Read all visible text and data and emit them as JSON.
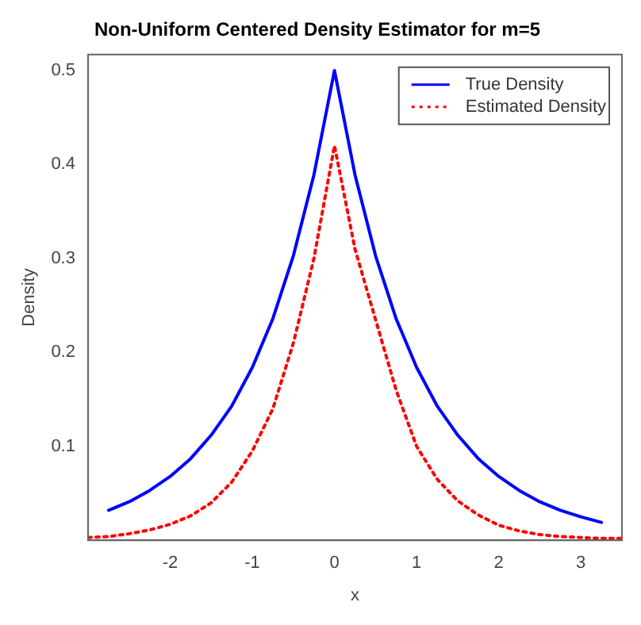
{
  "chart_data": {
    "type": "line",
    "title": "Non-Uniform Centered Density Estimator for m=5",
    "xlabel": "x",
    "ylabel": "Density",
    "xlim": [
      -3,
      3.5
    ],
    "ylim": [
      0,
      0.517
    ],
    "xticks": [
      -2,
      -1,
      0,
      1,
      2,
      3
    ],
    "yticks": [
      0.1,
      0.2,
      0.3,
      0.4,
      0.5
    ],
    "grid": false,
    "legend": "top right",
    "marker": "none",
    "series": [
      {
        "name": "True Density",
        "color": "#0000ff",
        "line_style": "solid",
        "x": [
          -2.75,
          -2.5,
          -2.25,
          -2,
          -1.75,
          -1.5,
          -1.25,
          -1,
          -0.75,
          -0.5,
          -0.25,
          0,
          0.25,
          0.5,
          0.75,
          1,
          1.25,
          1.5,
          1.75,
          2,
          2.25,
          2.5,
          2.75,
          3,
          3.25
        ],
        "values": [
          0.032,
          0.041,
          0.053,
          0.068,
          0.087,
          0.112,
          0.143,
          0.184,
          0.236,
          0.303,
          0.389,
          0.5,
          0.389,
          0.303,
          0.236,
          0.184,
          0.143,
          0.112,
          0.087,
          0.068,
          0.053,
          0.041,
          0.032,
          0.025,
          0.019
        ]
      },
      {
        "name": "Estimated Density",
        "color": "#ff0000",
        "line_style": "dotted",
        "x": [
          -3,
          -2.75,
          -2.5,
          -2.25,
          -2,
          -1.75,
          -1.5,
          -1.25,
          -1,
          -0.75,
          -0.5,
          -0.25,
          0,
          0.25,
          0.5,
          0.75,
          1,
          1.25,
          1.5,
          1.75,
          2,
          2.25,
          2.5,
          2.75,
          3,
          3.25,
          3.5
        ],
        "values": [
          0.003,
          0.004,
          0.007,
          0.011,
          0.017,
          0.026,
          0.04,
          0.062,
          0.095,
          0.14,
          0.21,
          0.3,
          0.42,
          0.31,
          0.235,
          0.16,
          0.1,
          0.065,
          0.042,
          0.027,
          0.016,
          0.01,
          0.006,
          0.004,
          0.003,
          0.002,
          0.002
        ]
      }
    ]
  }
}
